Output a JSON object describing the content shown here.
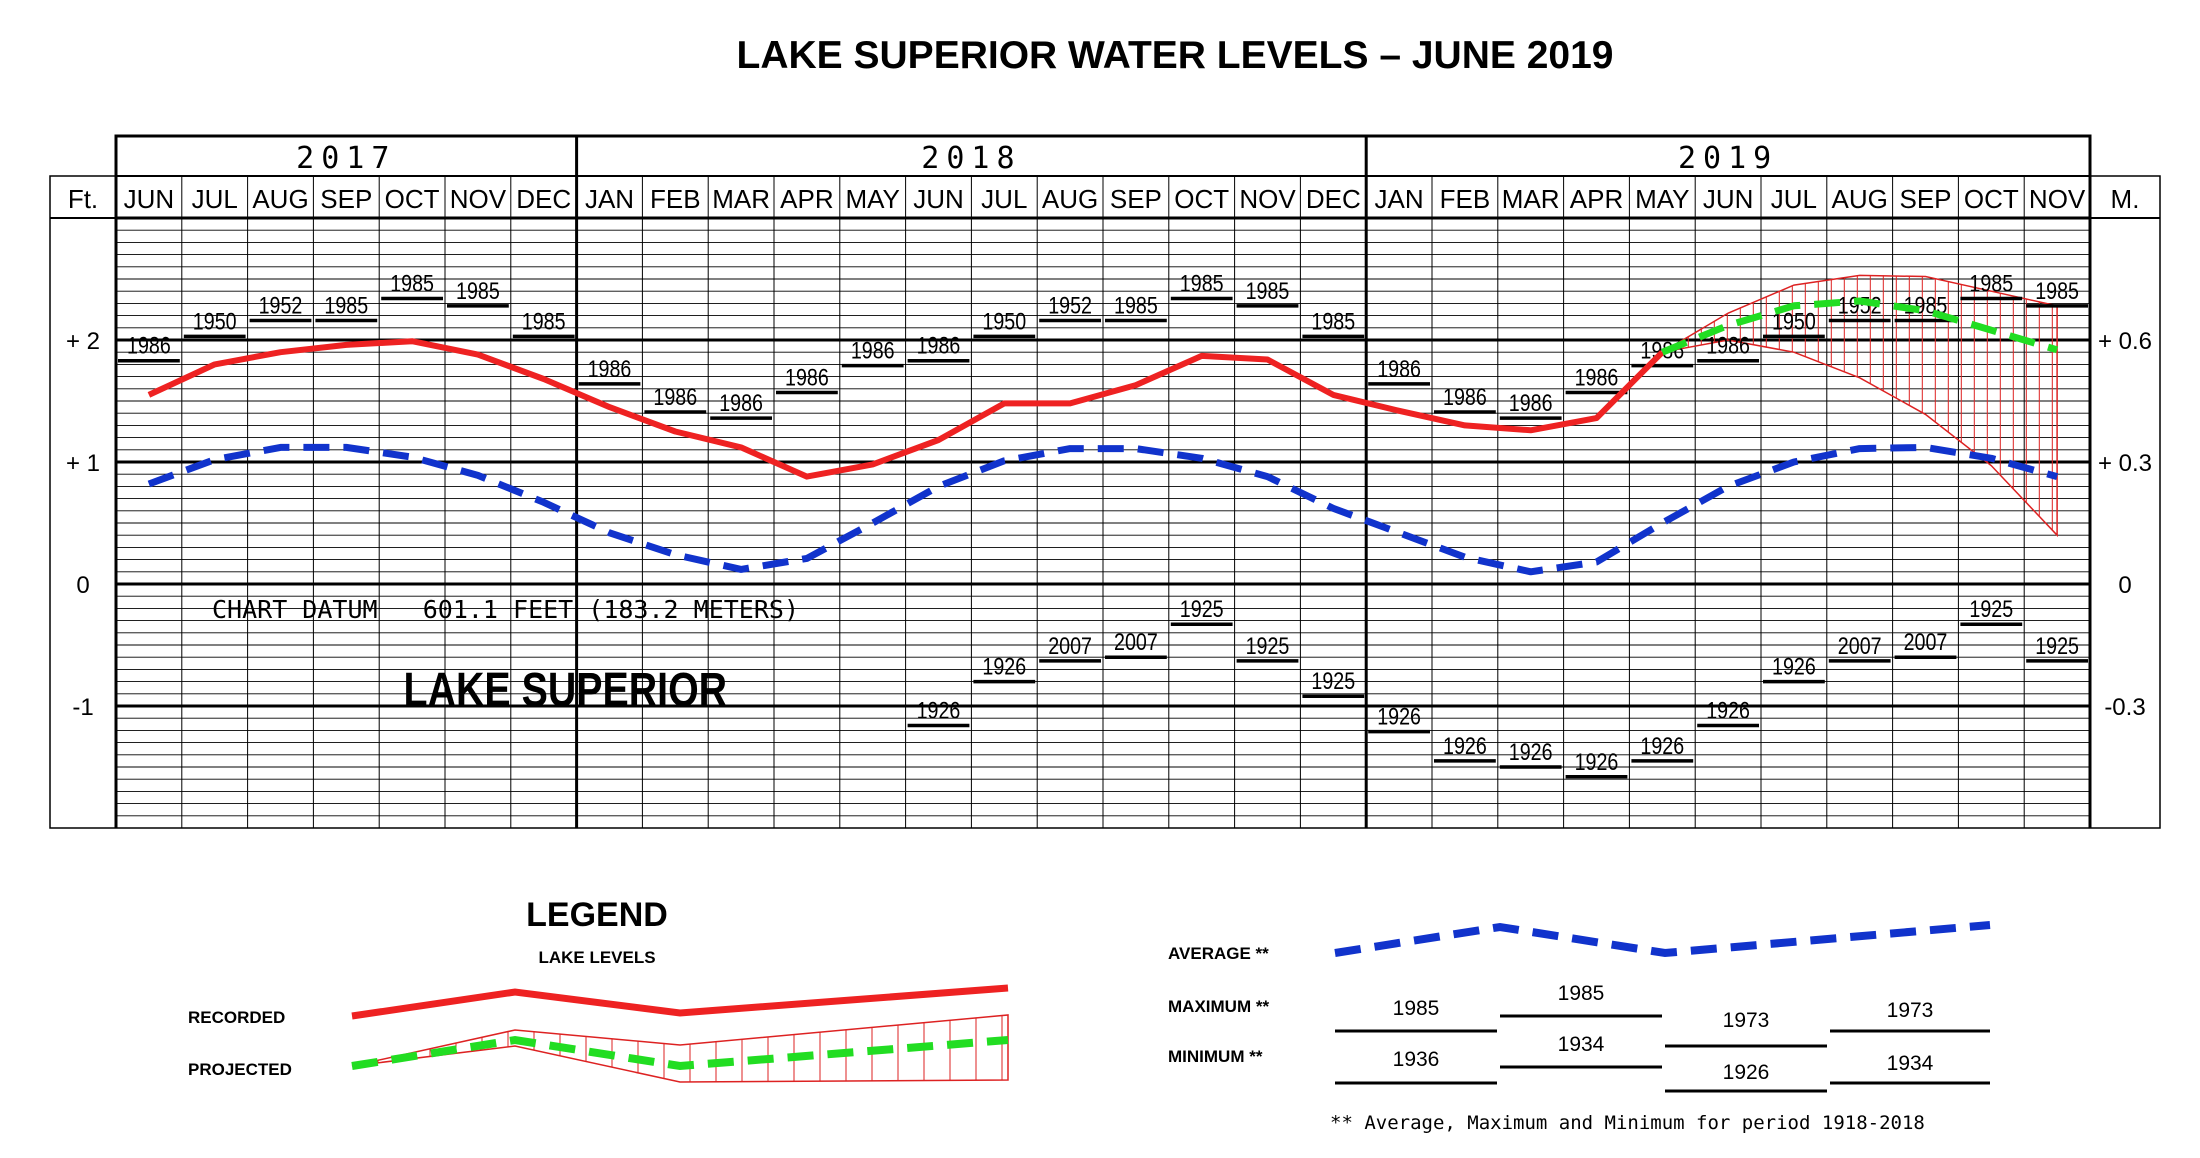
{
  "title": "LAKE SUPERIOR WATER LEVELS – JUNE 2019",
  "colors": {
    "recorded": "#ee2222",
    "projected": "#22dd22",
    "average": "#1133cc",
    "range": "#dd2222",
    "grid": "#000000"
  },
  "chart_data": {
    "type": "line",
    "title": "LAKE SUPERIOR WATER LEVELS – JUNE 2019",
    "years": [
      {
        "label": "2017",
        "months": 7
      },
      {
        "label": "2018",
        "months": 12
      },
      {
        "label": "2019",
        "months": 11
      }
    ],
    "categories": [
      "JUN",
      "JUL",
      "AUG",
      "SEP",
      "OCT",
      "NOV",
      "DEC",
      "JAN",
      "FEB",
      "MAR",
      "APR",
      "MAY",
      "JUN",
      "JUL",
      "AUG",
      "SEP",
      "OCT",
      "NOV",
      "DEC",
      "JAN",
      "FEB",
      "MAR",
      "APR",
      "MAY",
      "JUN",
      "JUL",
      "AUG",
      "SEP",
      "OCT",
      "NOV"
    ],
    "left_axis": {
      "unit": "Ft.",
      "ticks": [
        {
          "v": 2,
          "label": "+ 2"
        },
        {
          "v": 1,
          "label": "+ 1"
        },
        {
          "v": 0,
          "label": "0"
        },
        {
          "v": -1,
          "label": "-1"
        }
      ]
    },
    "right_axis": {
      "unit": "M.",
      "ticks": [
        {
          "v": 1.97,
          "label": "+ 0.6"
        },
        {
          "v": 0.98,
          "label": "+ 0.3"
        },
        {
          "v": 0,
          "label": "0"
        },
        {
          "v": -0.98,
          "label": "-0.3"
        }
      ]
    },
    "ylim": [
      -1.9,
      2.9
    ],
    "series": [
      {
        "name": "RECORDED",
        "style": "solid",
        "color": "#ee2222",
        "values": [
          1.55,
          1.8,
          1.9,
          1.96,
          1.99,
          1.88,
          1.68,
          1.45,
          1.25,
          1.12,
          0.88,
          0.98,
          1.18,
          1.48,
          1.48,
          1.63,
          1.87,
          1.84,
          1.55,
          1.42,
          1.3,
          1.26,
          1.36,
          1.9,
          null,
          null,
          null,
          null,
          null,
          null
        ]
      },
      {
        "name": "AVERAGE",
        "style": "dashed",
        "color": "#1133cc",
        "values": [
          0.82,
          1.02,
          1.12,
          1.12,
          1.04,
          0.89,
          0.67,
          0.42,
          0.24,
          0.12,
          0.21,
          0.5,
          0.8,
          1.01,
          1.11,
          1.11,
          1.03,
          0.88,
          0.62,
          0.42,
          0.22,
          0.1,
          0.18,
          0.5,
          0.8,
          1.0,
          1.11,
          1.12,
          1.03,
          0.88
        ]
      },
      {
        "name": "PROJECTED",
        "style": "dashed",
        "color": "#22dd22",
        "values": [
          null,
          null,
          null,
          null,
          null,
          null,
          null,
          null,
          null,
          null,
          null,
          null,
          null,
          null,
          null,
          null,
          null,
          null,
          null,
          null,
          null,
          null,
          null,
          1.9,
          2.12,
          2.28,
          2.32,
          2.24,
          2.08,
          1.92
        ]
      }
    ],
    "projected_range": {
      "start_index": 23,
      "upper": [
        1.9,
        2.22,
        2.45,
        2.53,
        2.52,
        2.4,
        2.28
      ],
      "lower": [
        1.9,
        2.0,
        1.9,
        1.69,
        1.39,
        0.97,
        0.4
      ]
    },
    "maximums": [
      {
        "i": 0,
        "v": 1.83,
        "label": "1986"
      },
      {
        "i": 1,
        "v": 2.03,
        "label": "1950"
      },
      {
        "i": 2,
        "v": 2.16,
        "label": "1952"
      },
      {
        "i": 3,
        "v": 2.16,
        "label": "1985"
      },
      {
        "i": 4,
        "v": 2.34,
        "label": "1985"
      },
      {
        "i": 5,
        "v": 2.28,
        "label": "1985"
      },
      {
        "i": 6,
        "v": 2.03,
        "label": "1985"
      },
      {
        "i": 7,
        "v": 1.64,
        "label": "1986"
      },
      {
        "i": 8,
        "v": 1.41,
        "label": "1986"
      },
      {
        "i": 9,
        "v": 1.36,
        "label": "1986"
      },
      {
        "i": 10,
        "v": 1.57,
        "label": "1986"
      },
      {
        "i": 11,
        "v": 1.79,
        "label": "1986"
      },
      {
        "i": 12,
        "v": 1.83,
        "label": "1986"
      },
      {
        "i": 13,
        "v": 2.03,
        "label": "1950"
      },
      {
        "i": 14,
        "v": 2.16,
        "label": "1952"
      },
      {
        "i": 15,
        "v": 2.16,
        "label": "1985"
      },
      {
        "i": 16,
        "v": 2.34,
        "label": "1985"
      },
      {
        "i": 17,
        "v": 2.28,
        "label": "1985"
      },
      {
        "i": 18,
        "v": 2.03,
        "label": "1985"
      },
      {
        "i": 19,
        "v": 1.64,
        "label": "1986"
      },
      {
        "i": 20,
        "v": 1.41,
        "label": "1986"
      },
      {
        "i": 21,
        "v": 1.36,
        "label": "1986"
      },
      {
        "i": 22,
        "v": 1.57,
        "label": "1986"
      },
      {
        "i": 23,
        "v": 1.79,
        "label": "1986"
      },
      {
        "i": 24,
        "v": 1.83,
        "label": "1986"
      },
      {
        "i": 25,
        "v": 2.03,
        "label": "1950"
      },
      {
        "i": 26,
        "v": 2.16,
        "label": "1952"
      },
      {
        "i": 27,
        "v": 2.16,
        "label": "1985"
      },
      {
        "i": 28,
        "v": 2.34,
        "label": "1985"
      },
      {
        "i": 29,
        "v": 2.28,
        "label": "1985"
      }
    ],
    "minimums": [
      {
        "i": 12,
        "v": -1.16,
        "label": "1926"
      },
      {
        "i": 13,
        "v": -0.8,
        "label": "1926"
      },
      {
        "i": 14,
        "v": -0.63,
        "label": "2007"
      },
      {
        "i": 15,
        "v": -0.6,
        "label": "2007"
      },
      {
        "i": 16,
        "v": -0.33,
        "label": "1925"
      },
      {
        "i": 17,
        "v": -0.63,
        "label": "1925"
      },
      {
        "i": 18,
        "v": -0.92,
        "label": "1925"
      },
      {
        "i": 19,
        "v": -1.21,
        "label": "1926"
      },
      {
        "i": 20,
        "v": -1.45,
        "label": "1926"
      },
      {
        "i": 21,
        "v": -1.5,
        "label": "1926"
      },
      {
        "i": 22,
        "v": -1.58,
        "label": "1926"
      },
      {
        "i": 23,
        "v": -1.45,
        "label": "1926"
      },
      {
        "i": 24,
        "v": -1.16,
        "label": "1926"
      },
      {
        "i": 25,
        "v": -0.8,
        "label": "1926"
      },
      {
        "i": 26,
        "v": -0.63,
        "label": "2007"
      },
      {
        "i": 27,
        "v": -0.6,
        "label": "2007"
      },
      {
        "i": 28,
        "v": -0.33,
        "label": "1925"
      },
      {
        "i": 29,
        "v": -0.63,
        "label": "1925"
      }
    ],
    "annotations": {
      "datum": "CHART DATUM   601.1 FEET (183.2 METERS)",
      "lake": "LAKE SUPERIOR"
    }
  },
  "legend": {
    "heading": "LEGEND",
    "subheading": "LAKE LEVELS",
    "recorded_label": "RECORDED",
    "projected_label": "PROJECTED",
    "average_label": "AVERAGE **",
    "maximum_label": "MAXIMUM **",
    "minimum_label": "MINIMUM **",
    "maximum_years": [
      "1985",
      "1985",
      "1973",
      "1973"
    ],
    "minimum_years": [
      "1936",
      "1934",
      "1926",
      "1934"
    ],
    "footnote": "** Average, Maximum and Minimum for period 1918-2018"
  }
}
